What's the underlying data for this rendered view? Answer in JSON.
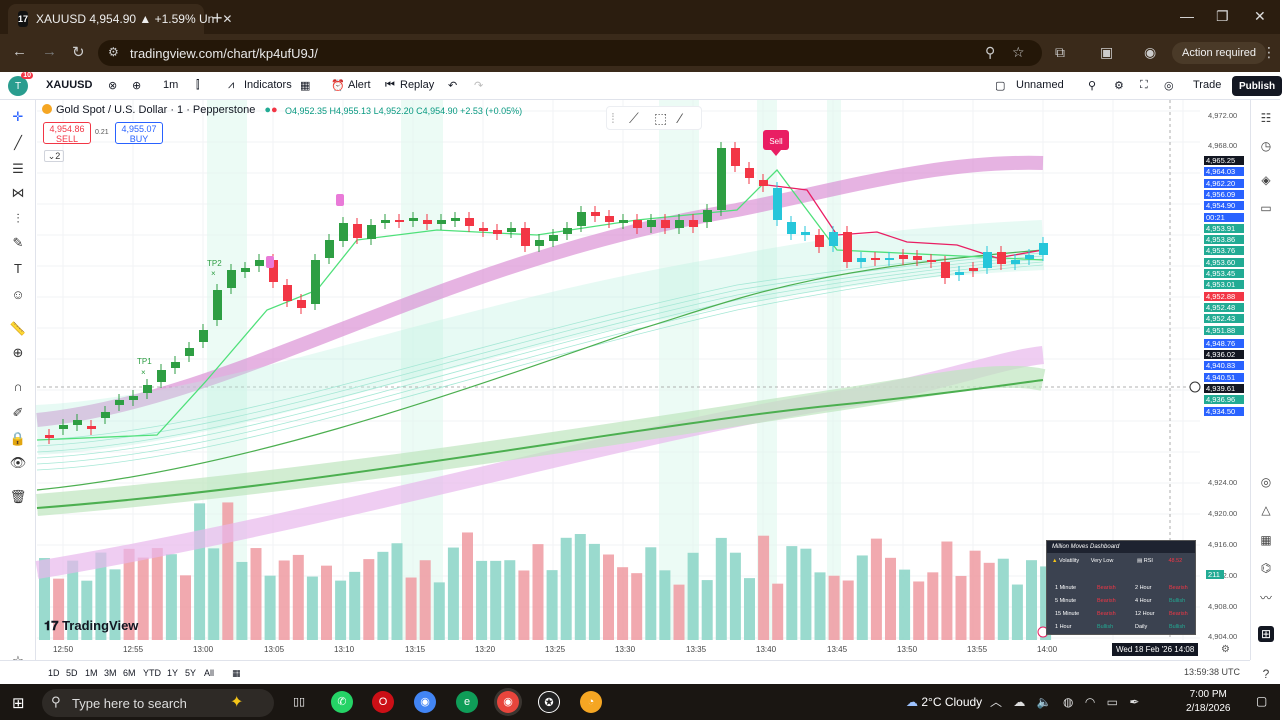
{
  "browser": {
    "tab_title": "XAUUSD 4,954.90 ▲ +1.59% Un",
    "url": "tradingview.com/chart/kp4ufU9J/",
    "action_required": "Action required"
  },
  "toolbar": {
    "avatar": "T",
    "badge": "10",
    "symbol": "XAUUSD",
    "interval": "1m",
    "indicators": "Indicators",
    "alert": "Alert",
    "replay": "Replay",
    "layout_name": "Unnamed",
    "trade": "Trade",
    "publish": "Publish"
  },
  "legend": {
    "title": "Gold Spot / U.S. Dollar · 1 · Pepperstone",
    "ohlc": "O4,952.35 H4,955.13 L4,952.20 C4,954.90 +2.53 (+0.05%)",
    "sell_price": "4,954.86",
    "sell_label": "SELL",
    "spread": "0.21",
    "buy_price": "4,955.07",
    "buy_label": "BUY",
    "collapse": "2"
  },
  "chart_labels": {
    "sell_marker": "Sell",
    "tp1": "TP1",
    "tp2": "TP2",
    "watermark": "TradingView"
  },
  "price_scale": {
    "ticks": [
      "4,972.00",
      "4,968.00",
      "4,960.00",
      "4,924.00",
      "4,920.00",
      "4,916.00",
      "4,912.00",
      "4,908.00",
      "4,904.00"
    ],
    "labels": [
      {
        "text": "4,965.25",
        "color": "#131722"
      },
      {
        "text": "4,964.03",
        "color": "#2962ff"
      },
      {
        "text": "4,962.20",
        "color": "#2962ff"
      },
      {
        "text": "4,956.09",
        "color": "#2962ff"
      },
      {
        "text": "4,954.90",
        "color": "#2962ff"
      },
      {
        "text": "00:21",
        "color": "#2962ff"
      },
      {
        "text": "4,953.91",
        "color": "#22ab94"
      },
      {
        "text": "4,953.86",
        "color": "#22ab94"
      },
      {
        "text": "4,953.76",
        "color": "#22ab94"
      },
      {
        "text": "4,953.60",
        "color": "#22ab94"
      },
      {
        "text": "4,953.45",
        "color": "#22ab94"
      },
      {
        "text": "4,953.01",
        "color": "#22ab94"
      },
      {
        "text": "4,952.88",
        "color": "#f23645"
      },
      {
        "text": "4,952.48",
        "color": "#22ab94"
      },
      {
        "text": "4,952.43",
        "color": "#22ab94"
      },
      {
        "text": "4,951.88",
        "color": "#22ab94"
      },
      {
        "text": "4,948.76",
        "color": "#2962ff"
      },
      {
        "text": "4,936.02",
        "color": "#131722"
      },
      {
        "text": "4,940.83",
        "color": "#2962ff"
      },
      {
        "text": "4,940.51",
        "color": "#2962ff"
      },
      {
        "text": "4,939.61",
        "color": "#131722"
      },
      {
        "text": "4,936.96",
        "color": "#22ab94"
      },
      {
        "text": "4,934.50",
        "color": "#2962ff"
      }
    ],
    "volume_label": "211"
  },
  "time_axis": {
    "ticks": [
      "12:50",
      "12:55",
      "13:00",
      "13:05",
      "13:10",
      "13:15",
      "13:20",
      "13:25",
      "13:30",
      "13:35",
      "13:40",
      "13:45",
      "13:50",
      "13:55",
      "14:00"
    ],
    "crosshair_date": "Wed 18 Feb '26  14:08"
  },
  "ranges": [
    "1D",
    "5D",
    "1M",
    "3M",
    "6M",
    "YTD",
    "1Y",
    "5Y",
    "All"
  ],
  "clock": "13:59:38 UTC",
  "dashboard": {
    "title": "Million Moves Dashboard",
    "volatility_label": "Volatility",
    "volatility_value": "Very Low",
    "rsi_label": "RSI",
    "rsi_value": "48.52",
    "rows": [
      {
        "tf1": "1 Minute",
        "s1": "Bearish",
        "tf2": "2 Hour",
        "s2": "Bearish"
      },
      {
        "tf1": "5 Minute",
        "s1": "Bearish",
        "tf2": "4 Hour",
        "s2": "Bullish"
      },
      {
        "tf1": "15 Minute",
        "s1": "Bearish",
        "tf2": "12 Hour",
        "s2": "Bearish"
      },
      {
        "tf1": "1 Hour",
        "s1": "Bullish",
        "tf2": "Daily",
        "s2": "Bullish"
      }
    ]
  },
  "taskbar": {
    "search_placeholder": "Type here to search",
    "weather": "2°C  Cloudy",
    "time": "7:00 PM",
    "date": "2/18/2026"
  },
  "colors": {
    "up": "#22ab94",
    "down": "#f23645",
    "accent": "#2962ff"
  }
}
